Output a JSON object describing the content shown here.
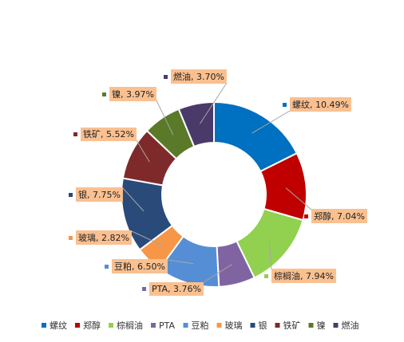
{
  "chart_data": {
    "type": "pie",
    "donut": true,
    "title": "",
    "legend_position": "bottom",
    "categories": [
      "螺纹",
      "郑醇",
      "棕榈油",
      "PTA",
      "豆粕",
      "玻璃",
      "银",
      "铁矿",
      "镍",
      "燃油"
    ],
    "values": [
      10.49,
      7.04,
      7.94,
      3.76,
      6.5,
      2.82,
      7.75,
      5.52,
      3.97,
      3.7
    ],
    "data_labels": [
      "螺纹, 10.49%",
      "郑醇, 7.04%",
      "棕榈油, 7.94%",
      "PTA, 3.76%",
      "豆粕, 6.50%",
      "玻璃, 2.82%",
      "银, 7.75%",
      "铁矿, 5.52%",
      "镍, 3.97%",
      "燃油, 3.70%"
    ],
    "colors": [
      "#0070C0",
      "#C00000",
      "#92D050",
      "#8064A2",
      "#558ED5",
      "#F79646",
      "#2A4A7A",
      "#7F2A2A",
      "#5A7A2A",
      "#4A3A6A"
    ],
    "label_background": "#FAC090"
  }
}
